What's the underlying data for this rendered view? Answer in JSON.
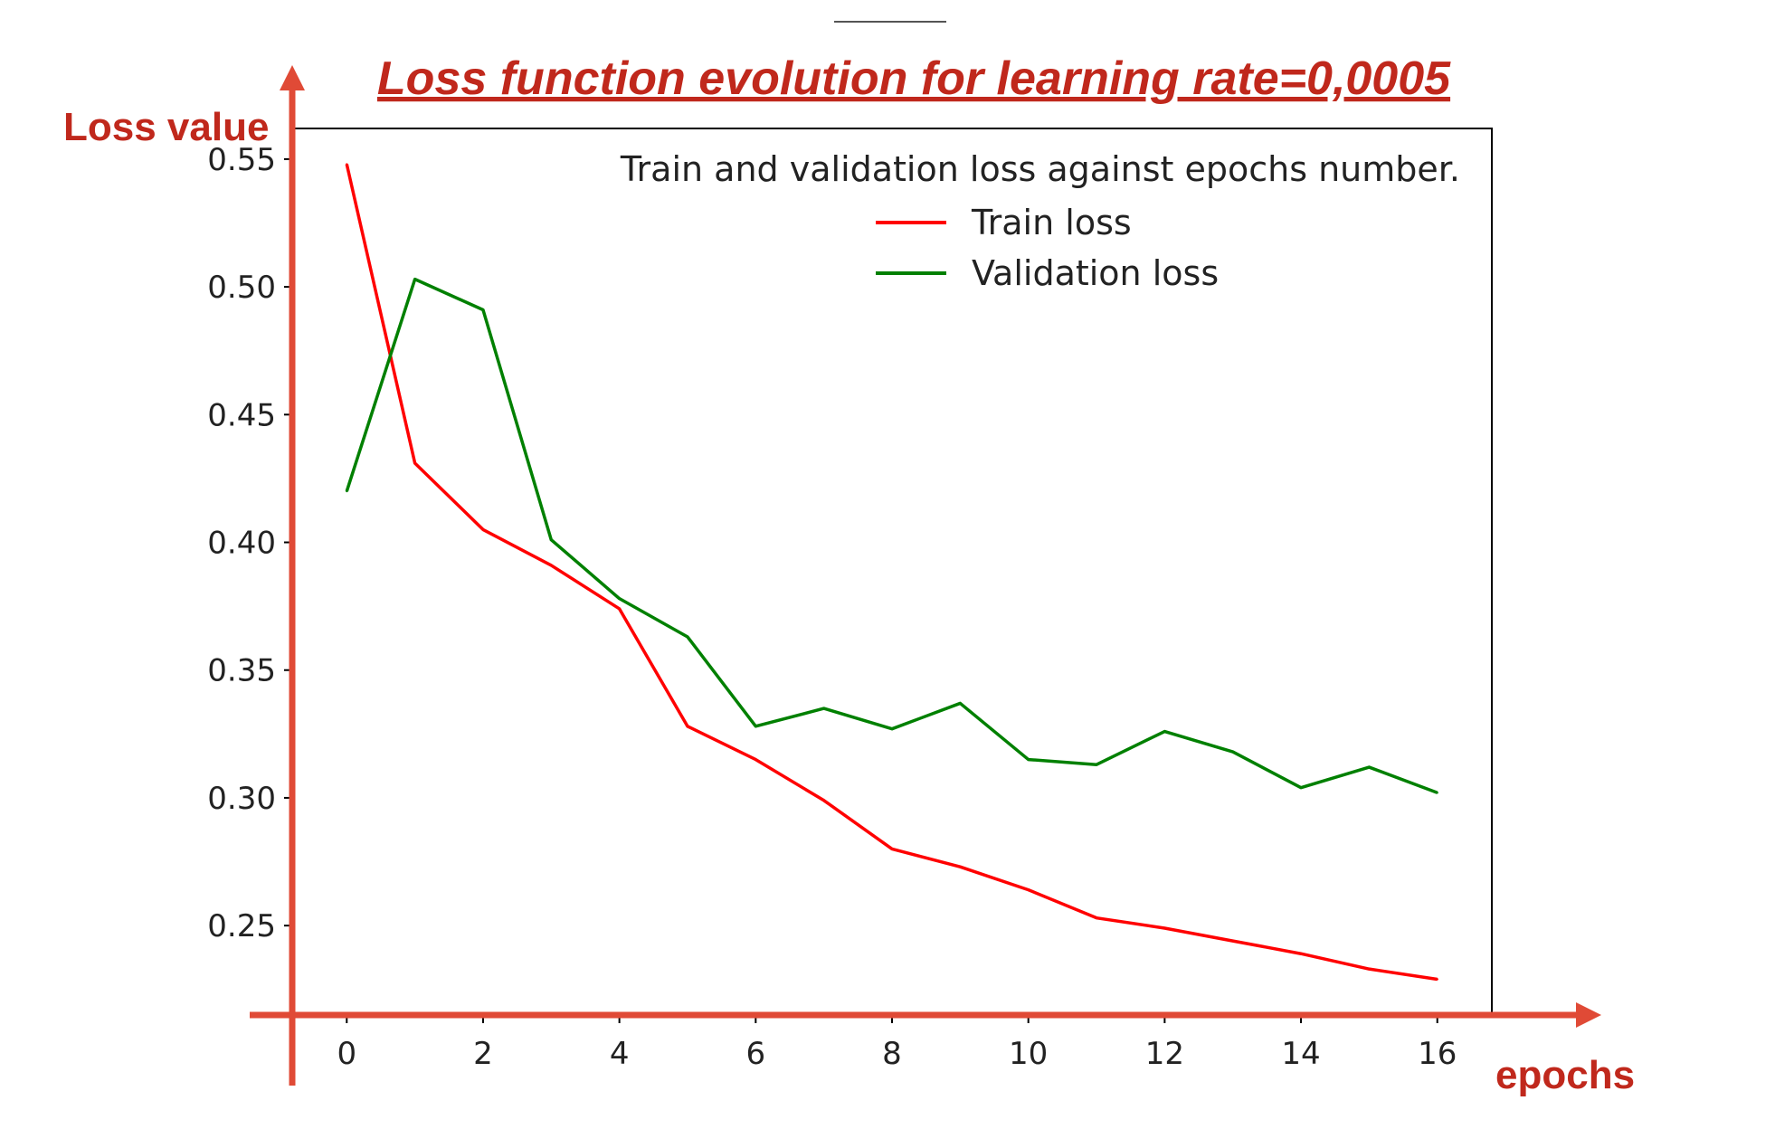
{
  "annotations": {
    "title": "Loss function evolution for learning rate=0,0005",
    "y_axis_label": "Loss value",
    "x_axis_label": "epochs",
    "color": "#c0281c",
    "arrow_color": "#e04a36"
  },
  "chart_data": {
    "type": "line",
    "title": "Train and validation loss against epochs number.",
    "xlabel": "epochs",
    "ylabel": "Loss value",
    "x": [
      0,
      1,
      2,
      3,
      4,
      5,
      6,
      7,
      8,
      9,
      10,
      11,
      12,
      13,
      14,
      15,
      16
    ],
    "xlim": [
      -0.8,
      16.8
    ],
    "ylim": [
      0.215,
      0.562
    ],
    "xticks": [
      0,
      2,
      4,
      6,
      8,
      10,
      12,
      14,
      16
    ],
    "xtick_labels": [
      "0",
      "2",
      "4",
      "6",
      "8",
      "10",
      "12",
      "14",
      "16"
    ],
    "yticks": [
      0.25,
      0.3,
      0.35,
      0.4,
      0.45,
      0.5,
      0.55
    ],
    "ytick_labels": [
      "0.25",
      "0.30",
      "0.35",
      "0.40",
      "0.45",
      "0.50",
      "0.55"
    ],
    "grid": false,
    "legend_position": "top-right",
    "series": [
      {
        "name": "Train loss",
        "color": "#ff0000",
        "values": [
          0.548,
          0.431,
          0.405,
          0.391,
          0.374,
          0.328,
          0.315,
          0.299,
          0.28,
          0.273,
          0.264,
          0.253,
          0.249,
          0.244,
          0.239,
          0.233,
          0.229
        ]
      },
      {
        "name": "Validation loss",
        "color": "#008000",
        "values": [
          0.42,
          0.503,
          0.491,
          0.401,
          0.378,
          0.363,
          0.328,
          0.335,
          0.327,
          0.337,
          0.315,
          0.313,
          0.326,
          0.318,
          0.304,
          0.312,
          0.302
        ]
      }
    ]
  }
}
